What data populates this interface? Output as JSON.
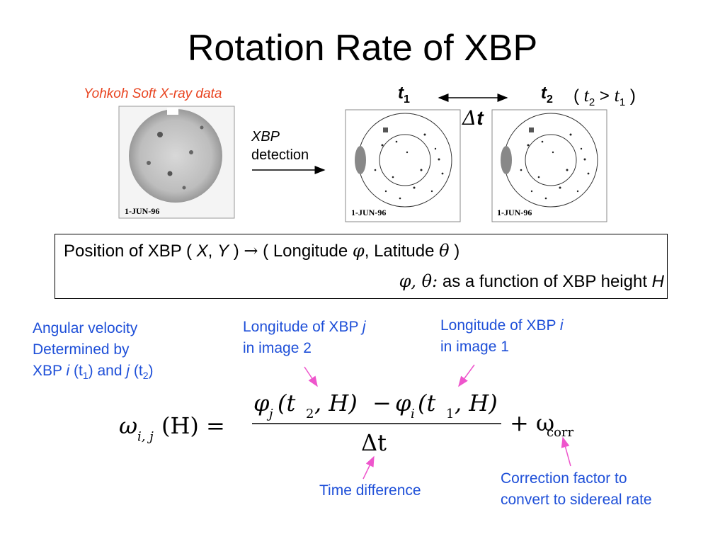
{
  "slide": {
    "title": "Rotation Rate of XBP",
    "source_label": "Yohkoh Soft X-ray data",
    "detection": {
      "line1": "XBP",
      "line2": "detection"
    },
    "images": {
      "date_label": "1-JUN-96"
    },
    "times": {
      "t1_var": "t",
      "t1_sub": "1",
      "t2_var": "t",
      "t2_sub": "2",
      "dt_symbol": "Δ",
      "dt_var": "t",
      "condition": {
        "open": "(",
        "gt": ">",
        "close": ")"
      }
    },
    "position_box": {
      "l1_a": "Position of XBP (",
      "X": "X",
      "comma": ",",
      "Y": "Y",
      "l1_b": ")",
      "arrow": "→",
      "l1_c": "( Longitude",
      "phi": "φ",
      "l1_d": ", Latitude",
      "theta": "θ",
      "l1_e": ")",
      "l2_syms": "φ, θ:",
      "l2_text": "as a function of XBP height",
      "H": "H"
    },
    "annotations": {
      "angular_velocity": {
        "line1": "Angular velocity",
        "line2": "Determined by",
        "l3a": "XBP",
        "i": "i",
        "t1": "(t",
        "s1": "1",
        "and": ") and",
        "j": "j",
        "t2": "(t",
        "s2": "2",
        "end": ")"
      },
      "longitude_j": {
        "line1": "Longitude of XBP",
        "var": "j",
        "line2": "in image 2"
      },
      "longitude_i": {
        "line1": "Longitude of XBP",
        "var": "i",
        "line2": "in image 1"
      },
      "time_difference": "Time difference",
      "correction": {
        "line1": "Correction factor to",
        "line2": "convert to sidereal rate"
      }
    },
    "equation": {
      "omega": "ω",
      "sub_ij": "i, j",
      "lhs_arg": "(H) =",
      "phi_j": "φ",
      "sub_j": "j",
      "num_j_arg": "(t",
      "num_t2": "2",
      "num_j_end": ", H)",
      "minus": "−",
      "phi_i": "φ",
      "sub_i": "i",
      "num_i_arg": "(t",
      "num_t1": "1",
      "num_i_end": ", H)",
      "den": "Δt",
      "plus": "+ ω",
      "corr": "corr"
    },
    "colors": {
      "accent_blue": "#1e4fd8",
      "source_red": "#e8421e",
      "pointer_pink": "#ee55cc"
    }
  }
}
